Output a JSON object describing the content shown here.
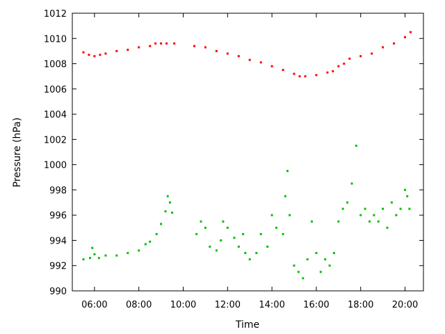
{
  "chart_data": {
    "type": "scatter",
    "title": "",
    "xlabel": "Time",
    "ylabel": "Pressure (hPa)",
    "xlim": [
      5.0,
      20.83
    ],
    "ylim": [
      990,
      1012
    ],
    "grid": false,
    "legend": "none",
    "x_ticks": [
      6,
      8,
      10,
      12,
      14,
      16,
      18,
      20
    ],
    "x_tick_labels": [
      "06:00",
      "08:00",
      "10:00",
      "12:00",
      "14:00",
      "16:00",
      "18:00",
      "20:00"
    ],
    "y_ticks": [
      990,
      992,
      994,
      996,
      998,
      1000,
      1002,
      1004,
      1006,
      1008,
      1010,
      1012
    ],
    "y_tick_labels": [
      "990",
      "992",
      "994",
      "996",
      "998",
      "1000",
      "1002",
      "1004",
      "1006",
      "1008",
      "1010",
      "1012"
    ],
    "series": [
      {
        "color": "#ff0000",
        "x": [
          5.5,
          5.75,
          6.0,
          6.25,
          6.5,
          7.0,
          7.5,
          8.0,
          8.5,
          8.75,
          9.0,
          9.25,
          9.6,
          10.5,
          11.0,
          11.5,
          12.0,
          12.5,
          13.0,
          13.5,
          14.0,
          14.5,
          15.0,
          15.25,
          15.5,
          16.0,
          16.5,
          16.75,
          17.0,
          17.25,
          17.5,
          18.0,
          18.5,
          19.0,
          19.5,
          20.0,
          20.25
        ],
        "values": [
          1008.9,
          1008.7,
          1008.6,
          1008.7,
          1008.8,
          1009.0,
          1009.1,
          1009.3,
          1009.4,
          1009.6,
          1009.6,
          1009.6,
          1009.6,
          1009.4,
          1009.3,
          1009.0,
          1008.8,
          1008.6,
          1008.3,
          1008.1,
          1007.8,
          1007.5,
          1007.2,
          1007.0,
          1007.0,
          1007.1,
          1007.3,
          1007.4,
          1007.8,
          1008.0,
          1008.4,
          1008.6,
          1008.8,
          1009.3,
          1009.6,
          1010.1,
          1010.5
        ]
      },
      {
        "color": "#00c000",
        "x": [
          5.5,
          5.8,
          5.9,
          6.0,
          6.2,
          6.5,
          7.0,
          7.5,
          8.0,
          8.3,
          8.5,
          8.8,
          9.0,
          9.2,
          9.3,
          9.4,
          9.5,
          10.6,
          10.8,
          11.0,
          11.2,
          11.5,
          11.7,
          11.8,
          12.0,
          12.3,
          12.5,
          12.7,
          12.8,
          13.0,
          13.3,
          13.5,
          13.8,
          14.0,
          14.2,
          14.5,
          14.6,
          14.7,
          14.8,
          15.0,
          15.2,
          15.4,
          15.6,
          15.8,
          16.0,
          16.2,
          16.4,
          16.6,
          16.8,
          17.0,
          17.2,
          17.4,
          17.6,
          17.8,
          18.0,
          18.2,
          18.4,
          18.6,
          18.8,
          19.0,
          19.2,
          19.4,
          19.6,
          19.8,
          20.0,
          20.1,
          20.2
        ],
        "values": [
          992.5,
          992.6,
          993.4,
          992.9,
          992.6,
          992.8,
          992.8,
          993.0,
          993.2,
          993.7,
          993.9,
          994.5,
          995.3,
          996.3,
          997.5,
          997.0,
          996.2,
          994.5,
          995.5,
          995.0,
          993.5,
          993.2,
          994.0,
          995.5,
          995.0,
          994.2,
          993.5,
          994.5,
          993.0,
          992.5,
          993.0,
          994.5,
          993.5,
          996.0,
          995.0,
          994.5,
          997.5,
          999.5,
          996.0,
          992.0,
          991.5,
          991.0,
          992.5,
          995.5,
          993.0,
          991.5,
          992.5,
          992.0,
          993.0,
          995.5,
          996.5,
          997.0,
          998.5,
          1001.5,
          996.0,
          996.5,
          995.5,
          996.0,
          995.5,
          996.5,
          995.0,
          997.0,
          996.0,
          996.5,
          998.0,
          997.5,
          996.5
        ]
      }
    ]
  }
}
